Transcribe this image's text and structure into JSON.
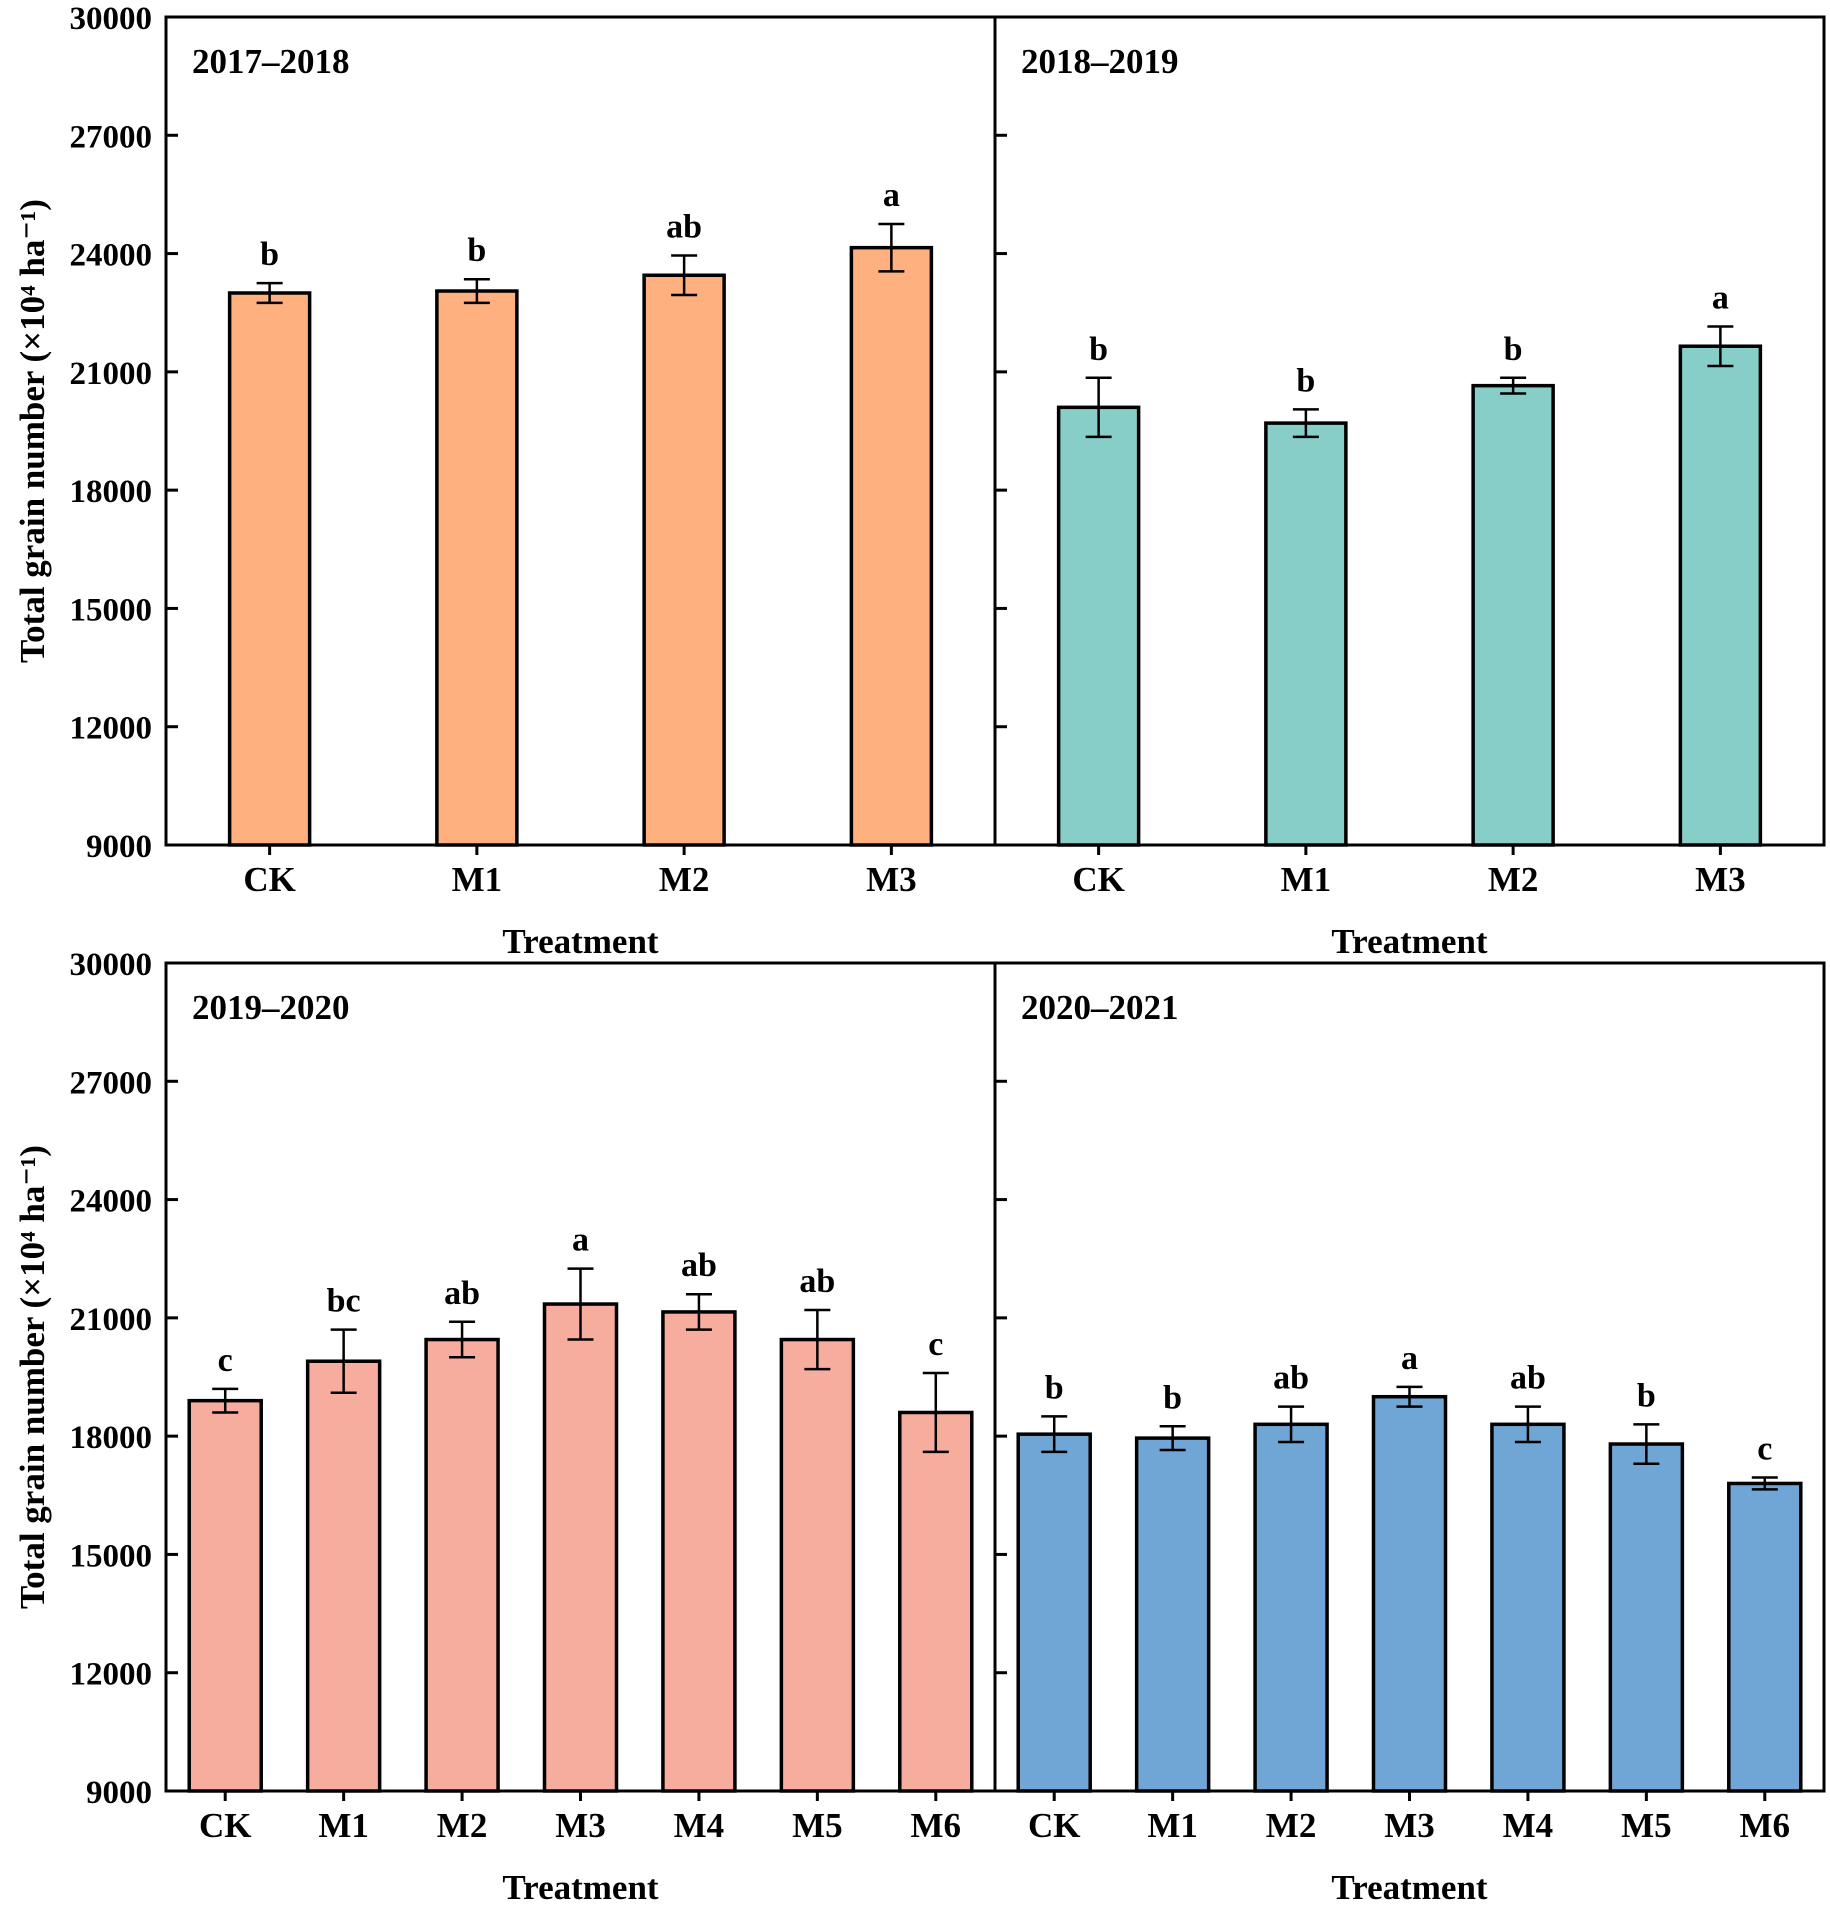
{
  "y_axis_label": "Total grain number (×10⁴ ha⁻¹)",
  "x_axis_label": "Treatment",
  "y_ticks": [
    "30000",
    "27000",
    "24000",
    "21000",
    "18000",
    "15000",
    "12000",
    "9000"
  ],
  "chart_data": [
    {
      "type": "bar",
      "title": "2017–2018",
      "xlabel": "Treatment",
      "ylabel": "Total grain number (×10⁴ ha⁻¹)",
      "ylim": [
        9000,
        30000
      ],
      "categories": [
        "CK",
        "M1",
        "M2",
        "M3"
      ],
      "values": [
        23000,
        23050,
        23450,
        24150
      ],
      "errors": [
        250,
        300,
        500,
        600
      ],
      "letters": [
        "b",
        "b",
        "ab",
        "a"
      ],
      "color": "#FFB07F"
    },
    {
      "type": "bar",
      "title": "2018–2019",
      "xlabel": "Treatment",
      "ylabel": "Total grain number (×10⁴ ha⁻¹)",
      "ylim": [
        9000,
        30000
      ],
      "categories": [
        "CK",
        "M1",
        "M2",
        "M3"
      ],
      "values": [
        20100,
        19700,
        20650,
        21650
      ],
      "errors": [
        750,
        350,
        200,
        500
      ],
      "letters": [
        "b",
        "b",
        "b",
        "a"
      ],
      "color": "#88CEC8"
    },
    {
      "type": "bar",
      "title": "2019–2020",
      "xlabel": "Treatment",
      "ylabel": "Total grain number (×10⁴ ha⁻¹)",
      "ylim": [
        9000,
        30000
      ],
      "categories": [
        "CK",
        "M1",
        "M2",
        "M3",
        "M4",
        "M5",
        "M6"
      ],
      "values": [
        18900,
        19900,
        20450,
        21350,
        21150,
        20450,
        18600
      ],
      "errors": [
        300,
        800,
        450,
        900,
        450,
        750,
        1000
      ],
      "letters": [
        "c",
        "bc",
        "ab",
        "a",
        "ab",
        "ab",
        "c"
      ],
      "color": "#F7AD9E"
    },
    {
      "type": "bar",
      "title": "2020–2021",
      "xlabel": "Treatment",
      "ylabel": "Total grain number (×10⁴ ha⁻¹)",
      "ylim": [
        9000,
        30000
      ],
      "categories": [
        "CK",
        "M1",
        "M2",
        "M3",
        "M4",
        "M5",
        "M6"
      ],
      "values": [
        18050,
        17950,
        18300,
        19000,
        18300,
        17800,
        16800
      ],
      "errors": [
        450,
        300,
        450,
        250,
        450,
        500,
        150
      ],
      "letters": [
        "b",
        "b",
        "ab",
        "a",
        "ab",
        "b",
        "c"
      ],
      "color": "#6FA6D6"
    }
  ]
}
